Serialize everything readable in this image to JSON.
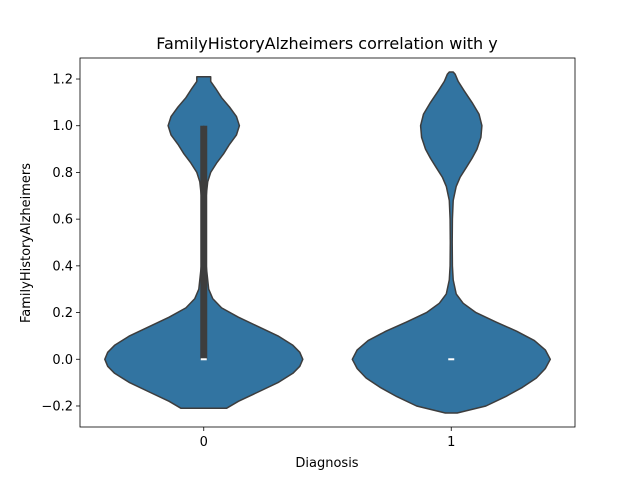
{
  "chart_data": {
    "type": "violin",
    "title": "FamilyHistoryAlzheimers correlation with y",
    "xlabel": "Diagnosis",
    "ylabel": "FamilyHistoryAlzheimers",
    "ylim": [
      -0.29,
      1.29
    ],
    "yticks": [
      -0.2,
      0.0,
      0.2,
      0.4,
      0.6,
      0.8,
      1.0,
      1.2
    ],
    "categories": [
      "0",
      "1"
    ],
    "colors": {
      "fill": "#3274a1",
      "edge": "#3d3d3d",
      "box": "#3d3d3d",
      "median": "#ffffff"
    },
    "violins": [
      {
        "category": "0",
        "y_range": [
          -0.21,
          1.21
        ],
        "density_profile": [
          [
            -0.21,
            0.23
          ],
          [
            -0.18,
            0.35
          ],
          [
            -0.14,
            0.55
          ],
          [
            -0.1,
            0.75
          ],
          [
            -0.06,
            0.9
          ],
          [
            -0.03,
            0.97
          ],
          [
            0.0,
            1.0
          ],
          [
            0.03,
            0.97
          ],
          [
            0.06,
            0.9
          ],
          [
            0.1,
            0.75
          ],
          [
            0.14,
            0.55
          ],
          [
            0.18,
            0.35
          ],
          [
            0.22,
            0.18
          ],
          [
            0.26,
            0.09
          ],
          [
            0.3,
            0.05
          ],
          [
            0.4,
            0.025
          ],
          [
            0.5,
            0.02
          ],
          [
            0.6,
            0.02
          ],
          [
            0.7,
            0.025
          ],
          [
            0.76,
            0.04
          ],
          [
            0.8,
            0.07
          ],
          [
            0.84,
            0.13
          ],
          [
            0.88,
            0.2
          ],
          [
            0.92,
            0.26
          ],
          [
            0.96,
            0.33
          ],
          [
            1.0,
            0.36
          ],
          [
            1.04,
            0.33
          ],
          [
            1.08,
            0.26
          ],
          [
            1.12,
            0.18
          ],
          [
            1.16,
            0.12
          ],
          [
            1.19,
            0.07
          ],
          [
            1.21,
            0.07
          ]
        ],
        "box": {
          "q1": 0.0,
          "q3": 1.0,
          "whisker_low": 0.0,
          "whisker_high": 1.0,
          "median": 0.0
        }
      },
      {
        "category": "1",
        "y_range": [
          -0.23,
          1.23
        ],
        "density_profile": [
          [
            -0.23,
            0.06
          ],
          [
            -0.2,
            0.35
          ],
          [
            -0.16,
            0.55
          ],
          [
            -0.12,
            0.72
          ],
          [
            -0.08,
            0.86
          ],
          [
            -0.04,
            0.95
          ],
          [
            0.0,
            1.0
          ],
          [
            0.04,
            0.95
          ],
          [
            0.08,
            0.84
          ],
          [
            0.12,
            0.66
          ],
          [
            0.16,
            0.45
          ],
          [
            0.2,
            0.25
          ],
          [
            0.24,
            0.12
          ],
          [
            0.28,
            0.05
          ],
          [
            0.34,
            0.02
          ],
          [
            0.4,
            0.012
          ],
          [
            0.5,
            0.01
          ],
          [
            0.6,
            0.012
          ],
          [
            0.68,
            0.02
          ],
          [
            0.74,
            0.05
          ],
          [
            0.78,
            0.09
          ],
          [
            0.82,
            0.15
          ],
          [
            0.86,
            0.21
          ],
          [
            0.9,
            0.26
          ],
          [
            0.95,
            0.3
          ],
          [
            1.0,
            0.31
          ],
          [
            1.05,
            0.28
          ],
          [
            1.1,
            0.21
          ],
          [
            1.15,
            0.13
          ],
          [
            1.19,
            0.07
          ],
          [
            1.22,
            0.04
          ],
          [
            1.23,
            0.02
          ]
        ],
        "box": {
          "q1": 0.0,
          "q3": 0.0,
          "whisker_low": 0.0,
          "whisker_high": 0.0,
          "median": 0.0
        }
      }
    ]
  }
}
